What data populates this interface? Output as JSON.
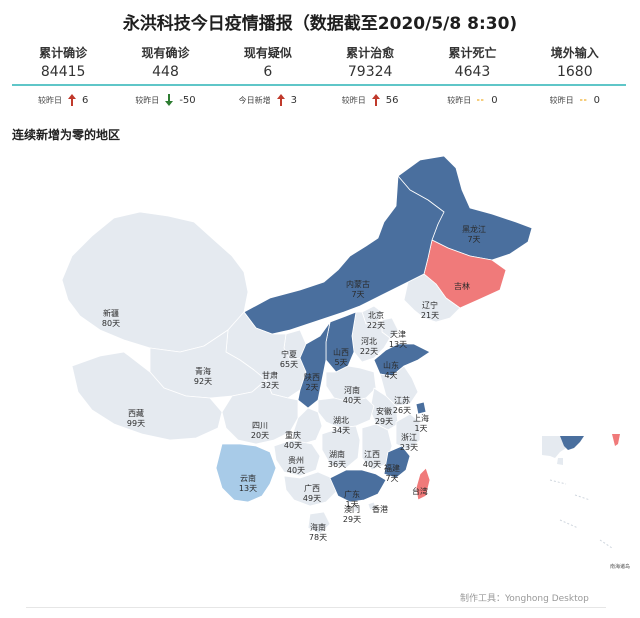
{
  "title": "永洪科技今日疫情播报（数据截至2020/5/8 8:30)",
  "stats": [
    {
      "label": "累计确诊",
      "value": "84415",
      "change_label": "较昨日",
      "change": "6",
      "trend": "up"
    },
    {
      "label": "现有确诊",
      "value": "448",
      "change_label": "较昨日",
      "change": "-50",
      "trend": "down"
    },
    {
      "label": "现有疑似",
      "value": "6",
      "change_label": "今日新增",
      "change": "3",
      "trend": "up"
    },
    {
      "label": "累计治愈",
      "value": "79324",
      "change_label": "较昨日",
      "change": "56",
      "trend": "up"
    },
    {
      "label": "累计死亡",
      "value": "4643",
      "change_label": "较昨日",
      "change": "0",
      "trend": "flat"
    },
    {
      "label": "境外输入",
      "value": "1680",
      "change_label": "较昨日",
      "change": "0",
      "trend": "flat"
    }
  ],
  "section_title": "连续新增为零的地区",
  "footer": "制作工具：Yonghong Desktop",
  "inset_label": "南海诸岛",
  "colors": {
    "dark": "#4a6f9e",
    "light_blue": "#a8cbe8",
    "red": "#f07a7a",
    "grey": "#e5eaf0",
    "up": "#c0392b",
    "down": "#2e7d32",
    "flat": "#f0b030"
  },
  "chart_data": {
    "type": "choropleth-map",
    "title": "连续新增为零的地区",
    "regions": [
      {
        "name": "黑龙江",
        "days": "7天",
        "category": "dark"
      },
      {
        "name": "吉林",
        "days": "",
        "category": "red"
      },
      {
        "name": "辽宁",
        "days": "21天",
        "category": "grey"
      },
      {
        "name": "内蒙古",
        "days": "7天",
        "category": "dark"
      },
      {
        "name": "北京",
        "days": "22天",
        "category": "grey"
      },
      {
        "name": "天津",
        "days": "13天",
        "category": "grey"
      },
      {
        "name": "河北",
        "days": "22天",
        "category": "grey"
      },
      {
        "name": "山西",
        "days": "5天",
        "category": "dark"
      },
      {
        "name": "山东",
        "days": "4天",
        "category": "dark"
      },
      {
        "name": "新疆",
        "days": "80天",
        "category": "grey"
      },
      {
        "name": "宁夏",
        "days": "65天",
        "category": "grey"
      },
      {
        "name": "甘肃",
        "days": "32天",
        "category": "grey"
      },
      {
        "name": "陕西",
        "days": "2天",
        "category": "dark"
      },
      {
        "name": "青海",
        "days": "92天",
        "category": "grey"
      },
      {
        "name": "河南",
        "days": "40天",
        "category": "grey"
      },
      {
        "name": "江苏",
        "days": "26天",
        "category": "grey"
      },
      {
        "name": "安徽",
        "days": "29天",
        "category": "grey"
      },
      {
        "name": "上海",
        "days": "1天",
        "category": "dark"
      },
      {
        "name": "湖北",
        "days": "34天",
        "category": "grey"
      },
      {
        "name": "西藏",
        "days": "99天",
        "category": "grey"
      },
      {
        "name": "四川",
        "days": "20天",
        "category": "grey"
      },
      {
        "name": "重庆",
        "days": "40天",
        "category": "grey"
      },
      {
        "name": "浙江",
        "days": "23天",
        "category": "grey"
      },
      {
        "name": "湖南",
        "days": "36天",
        "category": "grey"
      },
      {
        "name": "江西",
        "days": "40天",
        "category": "grey"
      },
      {
        "name": "贵州",
        "days": "40天",
        "category": "grey"
      },
      {
        "name": "福建",
        "days": "7天",
        "category": "dark"
      },
      {
        "name": "云南",
        "days": "13天",
        "category": "light_blue"
      },
      {
        "name": "广西",
        "days": "49天",
        "category": "grey"
      },
      {
        "name": "广东",
        "days": "1天",
        "category": "dark"
      },
      {
        "name": "台湾",
        "days": "",
        "category": "red"
      },
      {
        "name": "香港",
        "days": "",
        "category": "grey"
      },
      {
        "name": "澳门",
        "days": "29天",
        "category": "grey"
      },
      {
        "name": "海南",
        "days": "78天",
        "category": "grey"
      }
    ]
  }
}
